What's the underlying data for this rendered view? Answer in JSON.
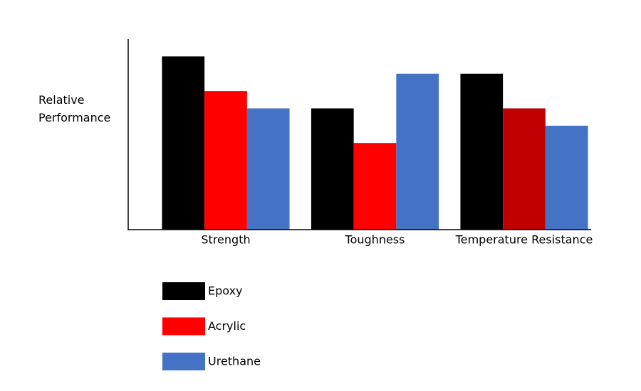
{
  "chart_data": {
    "type": "bar",
    "y_label": "Relative Performance",
    "categories": [
      "Strength",
      "Toughness",
      "Temperature Resistance"
    ],
    "series": [
      {
        "name": "Epoxy",
        "color": "#000000",
        "values": [
          10,
          7,
          9
        ]
      },
      {
        "name": "Acrylic",
        "color": "#ff0000",
        "bar_colors": [
          "#ff0000",
          "#ff0000",
          "#c00000"
        ],
        "values": [
          8,
          5,
          7
        ]
      },
      {
        "name": "Urethane",
        "color": "#4472c4",
        "values": [
          7,
          9,
          6
        ]
      }
    ],
    "ylim": [
      0,
      11
    ]
  }
}
